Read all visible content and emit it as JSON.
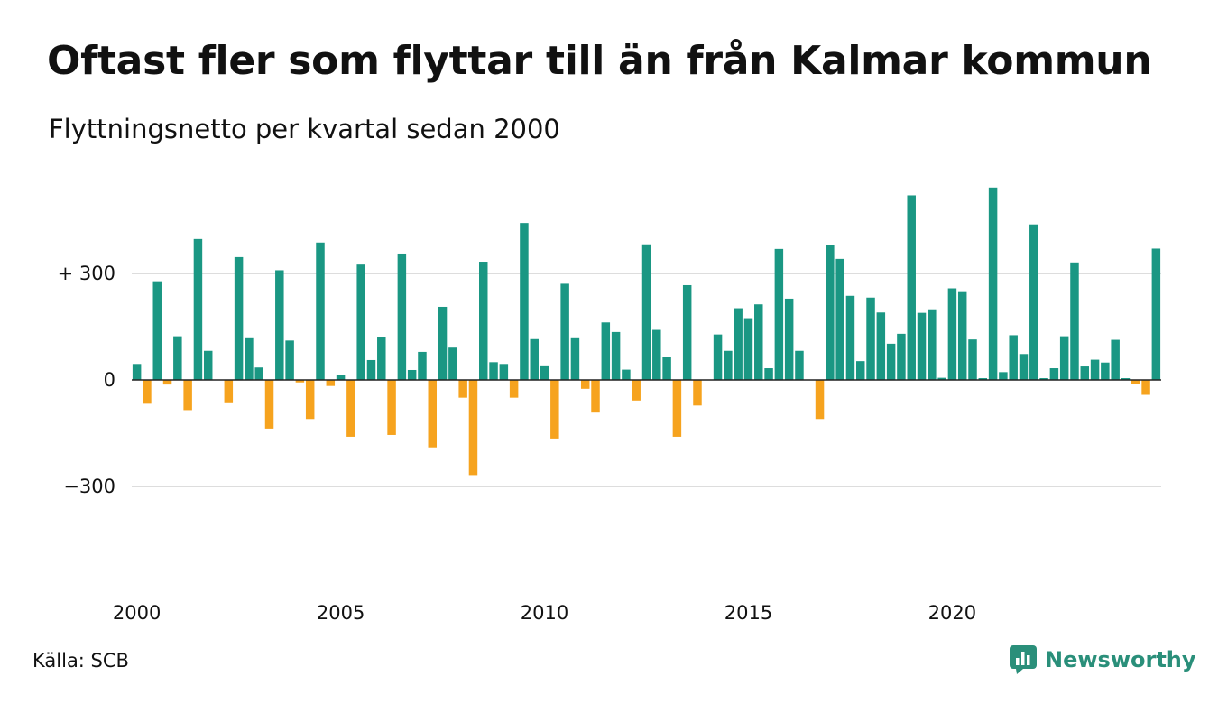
{
  "title": "Oftast fler som flyttar till än från Kalmar kommun",
  "subtitle": "Flyttningsnetto per kvartal sedan 2000",
  "source": "Källa: SCB",
  "brand": {
    "name": "Newsworthy",
    "icon": "newsworthy-logo-icon",
    "color": "#2a8f7a"
  },
  "chart_data": {
    "type": "bar",
    "title": "Oftast fler som flyttar till än från Kalmar kommun",
    "subtitle": "Flyttningsnetto per kvartal sedan 2000",
    "start": "2000 Q1",
    "frequency": "quarter",
    "x_ticks": [
      {
        "label": "2000",
        "year": 2000
      },
      {
        "label": "2005",
        "year": 2005
      },
      {
        "label": "2010",
        "year": 2010
      },
      {
        "label": "2015",
        "year": 2015
      },
      {
        "label": "2020",
        "year": 2020
      }
    ],
    "y_ticks": [
      {
        "label": "+ 300",
        "value": 300
      },
      {
        "label": "0",
        "value": 0
      },
      {
        "label": "−300",
        "value": -300
      }
    ],
    "ylim": [
      -530,
      560
    ],
    "grid": true,
    "colors": {
      "positive": "#1a9783",
      "negative": "#f6a31e",
      "grid": "#dddddd",
      "zero_line": "#222222"
    },
    "values": [
      45,
      -67,
      278,
      -13,
      123,
      -85,
      397,
      82,
      0,
      -63,
      346,
      120,
      35,
      -137,
      309,
      111,
      -7,
      -110,
      387,
      -17,
      14,
      -160,
      325,
      56,
      122,
      -155,
      356,
      28,
      79,
      -190,
      206,
      91,
      -50,
      -268,
      333,
      50,
      45,
      -50,
      442,
      115,
      41,
      -165,
      271,
      120,
      -25,
      -92,
      162,
      135,
      29,
      -58,
      382,
      141,
      66,
      -160,
      267,
      -72,
      0,
      128,
      82,
      202,
      174,
      213,
      33,
      369,
      229,
      82,
      0,
      -110,
      379,
      341,
      237,
      53,
      232,
      190,
      102,
      130,
      520,
      189,
      199,
      6,
      258,
      250,
      114,
      5,
      542,
      22,
      126,
      73,
      438,
      5,
      33,
      123,
      331,
      38,
      57,
      49,
      113,
      5,
      -12,
      -42,
      370
    ]
  }
}
